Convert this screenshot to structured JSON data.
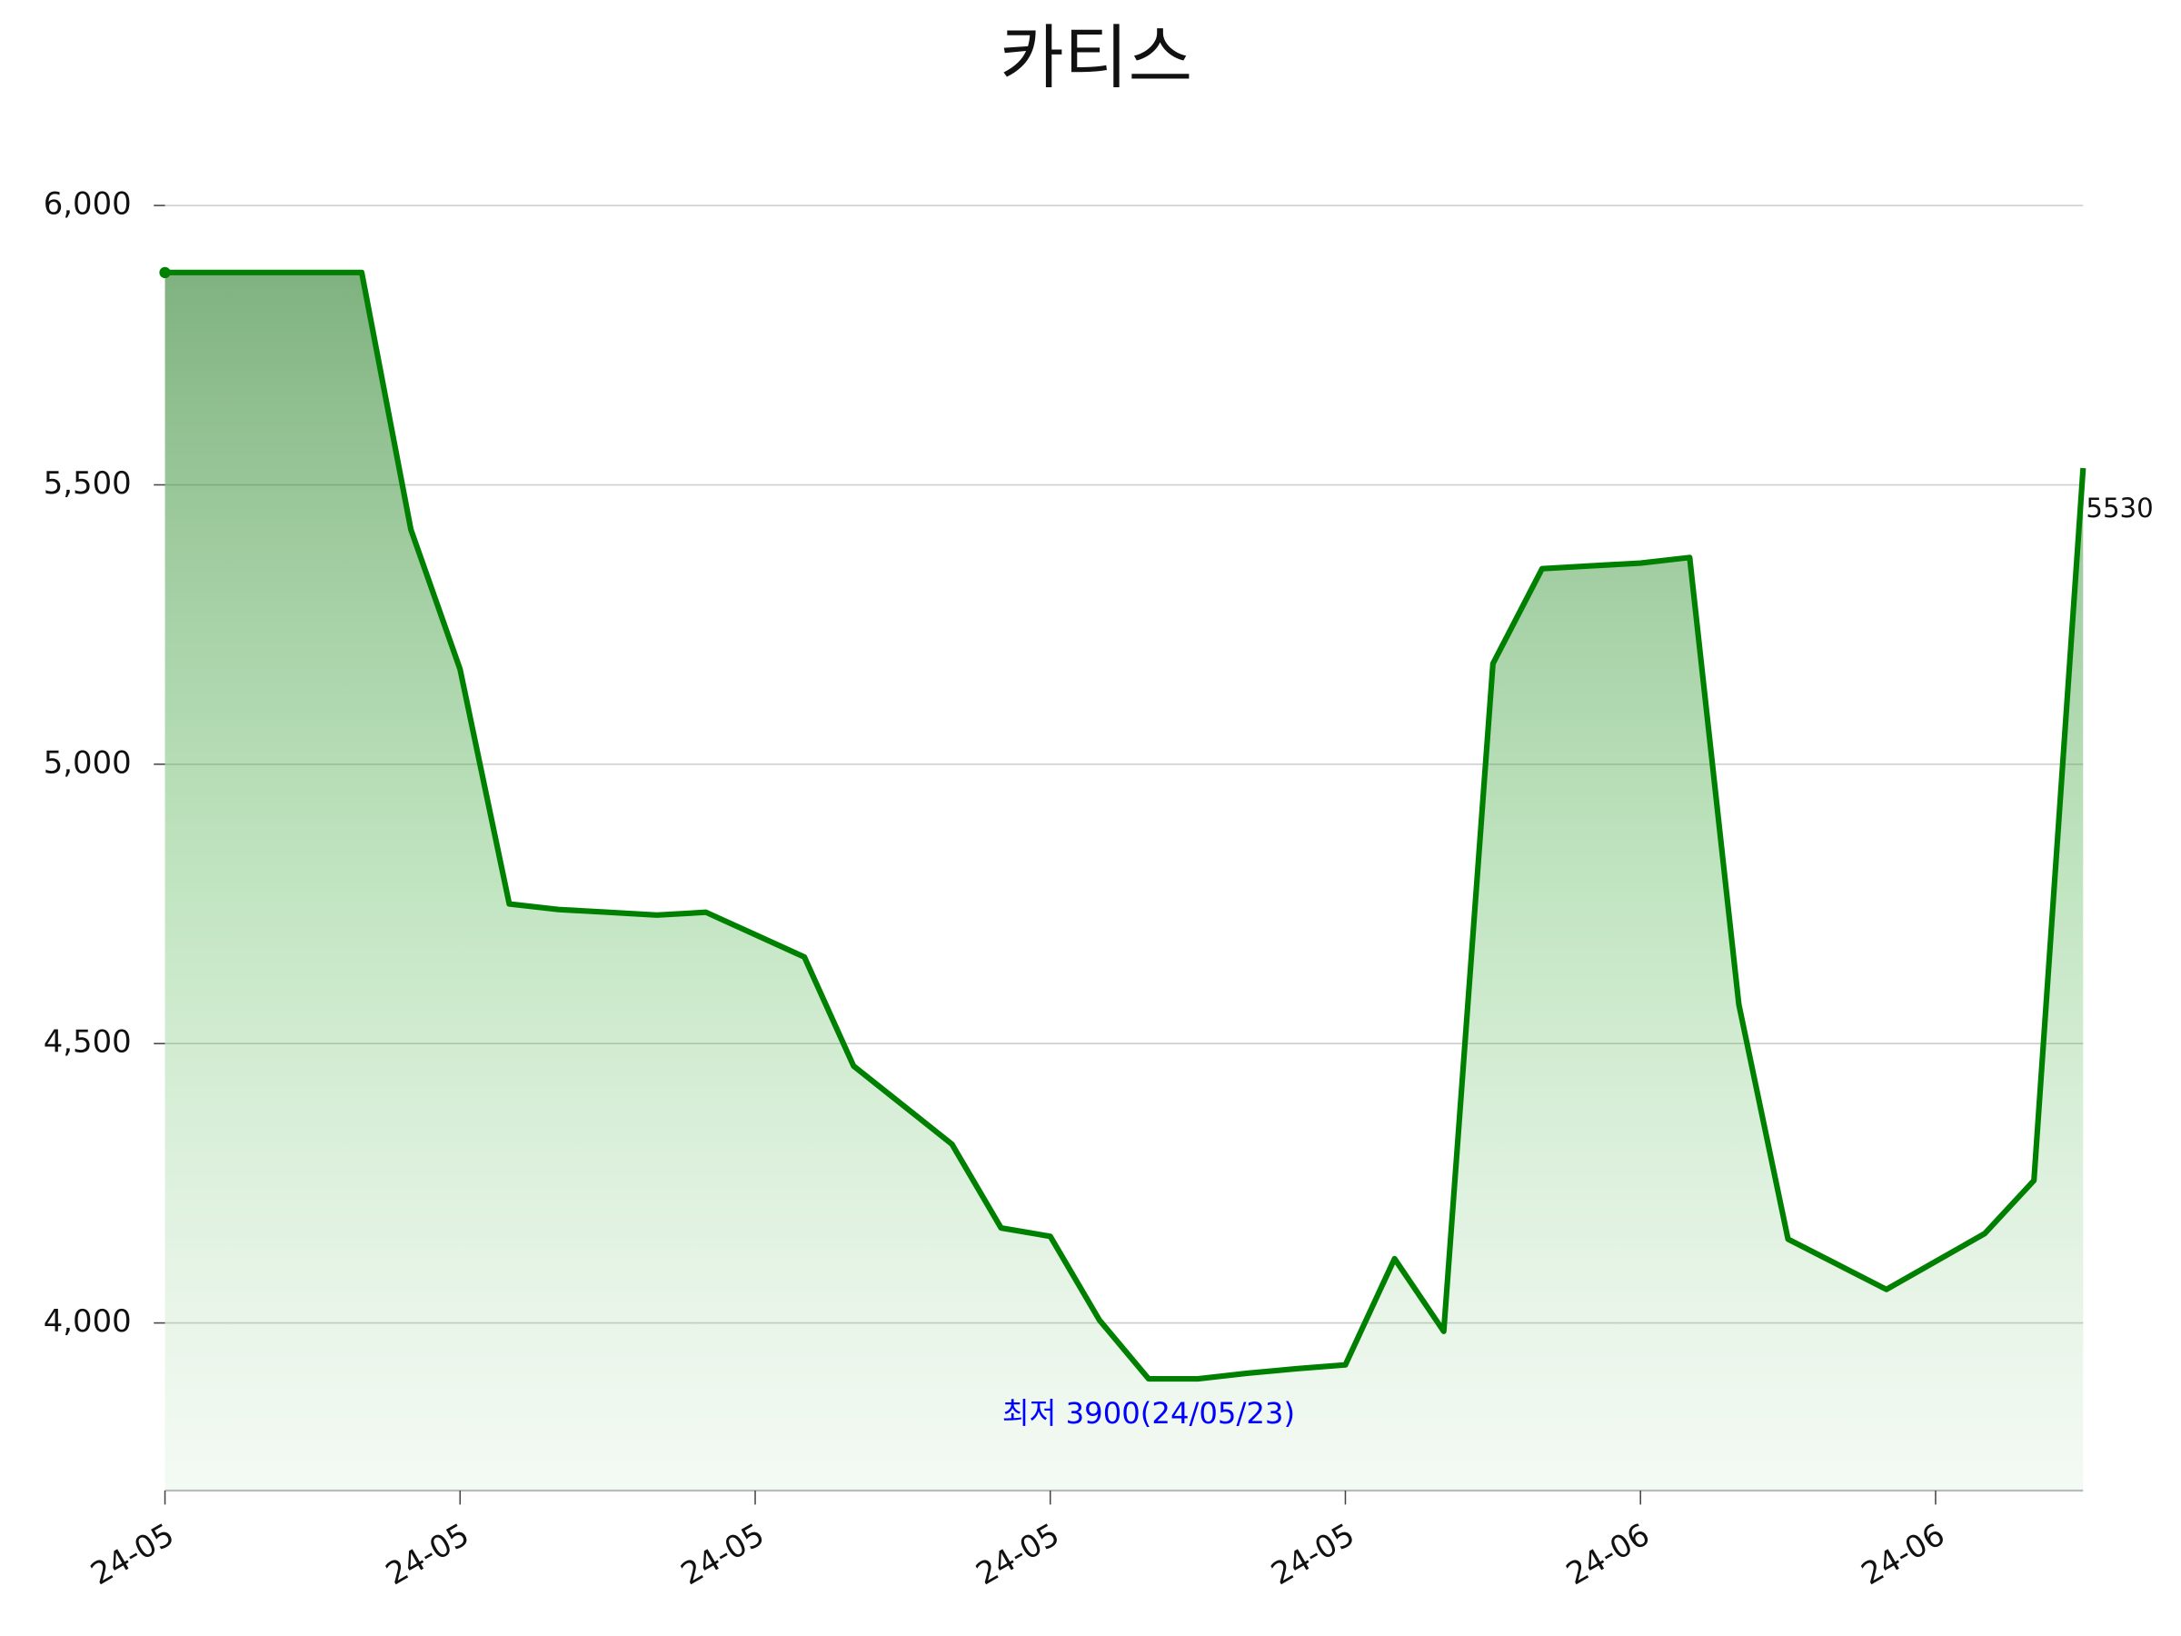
{
  "chart_data": {
    "type": "line",
    "title": "카티스",
    "categories": [
      "24-05",
      null,
      null,
      null,
      null,
      null,
      "24-05",
      null,
      null,
      null,
      null,
      null,
      "24-05",
      null,
      null,
      null,
      null,
      null,
      "24-05",
      null,
      null,
      null,
      null,
      null,
      "24-05",
      null,
      null,
      null,
      null,
      null,
      "24-06",
      null,
      null,
      null,
      null,
      null,
      "24-06",
      null,
      null,
      null
    ],
    "series": [
      {
        "name": "카티스",
        "color": "#008000",
        "values": [
          5880,
          5880,
          5880,
          5880,
          5880,
          5420,
          5170,
          4750,
          4740,
          4735,
          4730,
          4735,
          4695,
          4655,
          4460,
          4390,
          4320,
          4170,
          4155,
          4005,
          3900,
          3900,
          3910,
          3918,
          3925,
          4115,
          3985,
          5180,
          5350,
          5355,
          5360,
          5370,
          4570,
          4150,
          4105,
          4060,
          4110,
          4160,
          4255,
          5530
        ]
      }
    ],
    "ylim": [
      3700,
      6100
    ],
    "yticks": [
      {
        "value": 4000,
        "label": "4,000"
      },
      {
        "value": 4500,
        "label": "4,500"
      },
      {
        "value": 5000,
        "label": "5,000"
      },
      {
        "value": 5500,
        "label": "5,500"
      },
      {
        "value": 6000,
        "label": "6,000"
      }
    ],
    "grid": true,
    "annotations": [
      {
        "text": "최저 3900(24/05/23)",
        "index": 20,
        "color": "#0000ff"
      }
    ]
  }
}
